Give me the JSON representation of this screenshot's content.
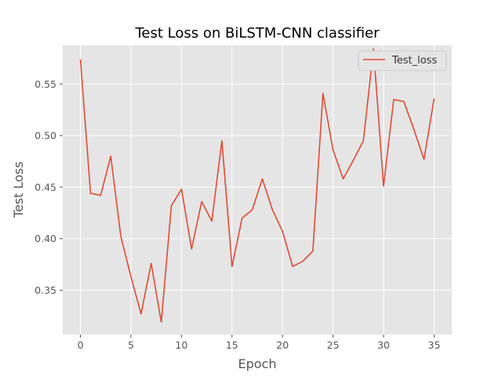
{
  "chart_data": {
    "type": "line",
    "title": "Test Loss on BiLSTM-CNN classifier",
    "xlabel": "Epoch",
    "ylabel": "Test Loss",
    "xlim": [
      -1.75,
      36.75
    ],
    "ylim": [
      0.307,
      0.5875
    ],
    "xticks": [
      0,
      5,
      10,
      15,
      20,
      25,
      30,
      35
    ],
    "xtick_labels": [
      "0",
      "5",
      "10",
      "15",
      "20",
      "25",
      "30",
      "35"
    ],
    "yticks": [
      0.35,
      0.4,
      0.45,
      0.5,
      0.55
    ],
    "ytick_labels": [
      "0.35",
      "0.40",
      "0.45",
      "0.50",
      "0.55"
    ],
    "grid": true,
    "legend_position": "top-right",
    "background_color": "#e5e5e5",
    "series": [
      {
        "name": "Test_loss",
        "color": "#e24a33",
        "x": [
          0,
          1,
          2,
          3,
          4,
          5,
          6,
          7,
          8,
          9,
          10,
          11,
          12,
          13,
          14,
          15,
          16,
          17,
          18,
          19,
          20,
          21,
          22,
          23,
          24,
          25,
          26,
          27,
          28,
          29,
          30,
          31,
          32,
          33,
          34,
          35
        ],
        "values": [
          0.574,
          0.444,
          0.442,
          0.48,
          0.402,
          0.363,
          0.327,
          0.376,
          0.319,
          0.432,
          0.448,
          0.39,
          0.436,
          0.417,
          0.495,
          0.373,
          0.42,
          0.428,
          0.458,
          0.428,
          0.407,
          0.373,
          0.378,
          0.388,
          0.541,
          0.486,
          0.458,
          0.476,
          0.495,
          0.584,
          0.451,
          0.535,
          0.533,
          0.506,
          0.477,
          0.536
        ]
      }
    ]
  }
}
